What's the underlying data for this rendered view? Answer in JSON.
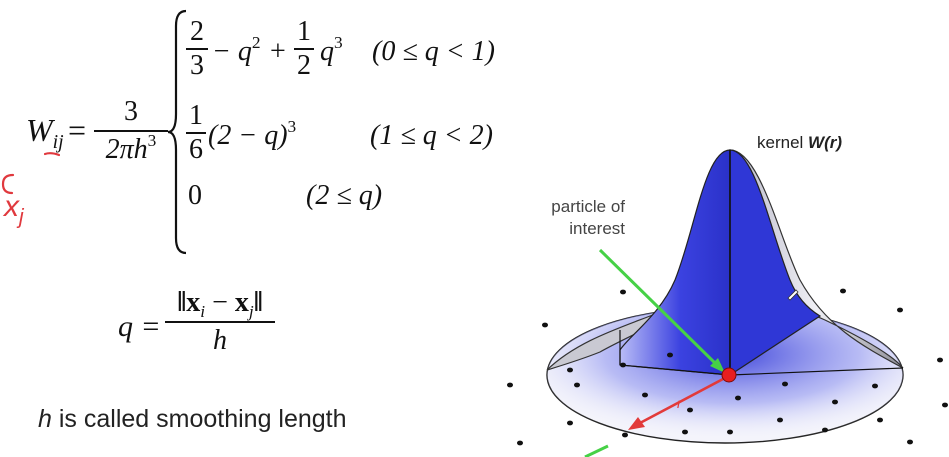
{
  "formula": {
    "lhs_symbol": "W",
    "lhs_subscript": "ij",
    "equals": "=",
    "coef_num": "3",
    "coef_den": "2πh",
    "coef_den_exp": "3",
    "case1": {
      "frac_num": "2",
      "frac_den": "3",
      "mid": "− q",
      "mid_exp": "2",
      "plus": "+",
      "half_num": "1",
      "half_den": "2",
      "tail": "q",
      "tail_exp": "3",
      "condition": "(0 ≤ q < 1)"
    },
    "case2": {
      "frac_num": "1",
      "frac_den": "6",
      "body": "(2 − q)",
      "body_exp": "3",
      "condition": "(1 ≤ q < 2)"
    },
    "case3": {
      "value": "0",
      "condition": "(2 ≤ q)"
    }
  },
  "q_formula": {
    "lhs": "q =",
    "num_left": "x",
    "num_left_sub": "i",
    "num_minus": "−",
    "num_right": "x",
    "num_right_sub": "j",
    "den": "h"
  },
  "caption": {
    "h_symbol": "h",
    "text": "is called smoothing length"
  },
  "handwriting": {
    "subscript_note": "x",
    "subscript_note_sub": "j"
  },
  "diagram": {
    "kernel_label_prefix": "kernel",
    "kernel_label_func": "W(r)",
    "particle_label_line1": "particle of",
    "particle_label_line2": "interest",
    "r_label": "r",
    "colors": {
      "kernel_blue": "#2f37d6",
      "kernel_light": "#9ea3f3",
      "arrow_green": "#46d146",
      "arrow_red": "#e23a3a",
      "particle_red": "#e81e1e",
      "dot_black": "#111111",
      "handwriting_red": "#e0393e"
    }
  }
}
